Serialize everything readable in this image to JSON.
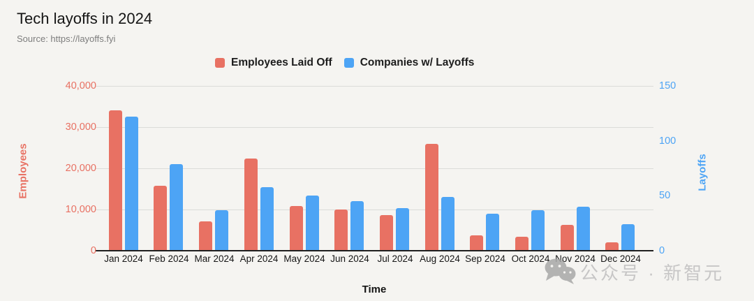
{
  "header": {
    "title": "Tech layoffs in 2024",
    "source": "Source: https://layoffs.fyi"
  },
  "watermark": {
    "text": "公众号 · 新智元",
    "icon": "wechat-icon"
  },
  "colors": {
    "employees_series": "#E87163",
    "companies_series": "#4DA4F5",
    "background": "#F5F4F1"
  },
  "chart_data": {
    "type": "bar",
    "title": "Tech layoffs in 2024",
    "xlabel": "Time",
    "grid": true,
    "legend_position": "top",
    "categories": [
      "Jan 2024",
      "Feb 2024",
      "Mar 2024",
      "Apr 2024",
      "May 2024",
      "Jun 2024",
      "Jul 2024",
      "Aug 2024",
      "Sep 2024",
      "Oct 2024",
      "Nov 2024",
      "Dec 2024"
    ],
    "series": [
      {
        "name": "Employees Laid Off",
        "axis": "left",
        "color": "#E87163",
        "values": [
          34100,
          15800,
          7200,
          22400,
          10800,
          10000,
          8700,
          25900,
          3800,
          3400,
          6300,
          2100
        ]
      },
      {
        "name": "Companies w/ Layoffs",
        "axis": "right",
        "color": "#4DA4F5",
        "values": [
          122,
          79,
          37,
          58,
          50,
          45,
          39,
          49,
          34,
          37,
          40,
          24
        ]
      }
    ],
    "left_axis": {
      "label": "Employees",
      "min": 0,
      "max": 40000,
      "tick_values": [
        0,
        10000,
        20000,
        30000,
        40000
      ],
      "tick_labels": [
        "0",
        "10,000",
        "20,000",
        "30,000",
        "40,000"
      ]
    },
    "right_axis": {
      "label": "Layoffs",
      "min": 0,
      "max": 150,
      "tick_values": [
        0,
        50,
        100,
        150
      ],
      "tick_labels": [
        "0",
        "50",
        "100",
        "150"
      ]
    }
  }
}
